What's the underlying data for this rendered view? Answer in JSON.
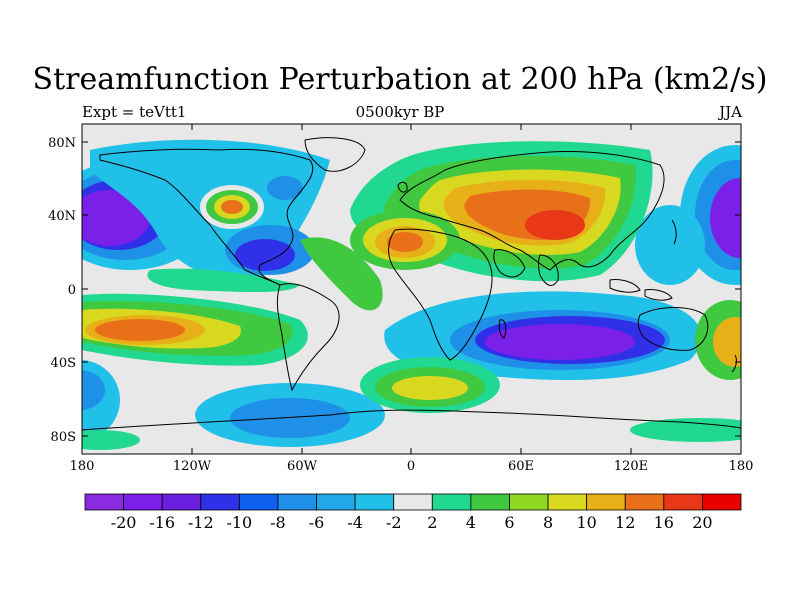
{
  "title": "Streamfunction Perturbation at 200 hPa (km2/s)",
  "subtitle_left": "Expt = teVtt1",
  "subtitle_center": "0500kyr BP",
  "subtitle_right": "JJA",
  "lat_labels": [
    "80N",
    "40N",
    "0",
    "40S",
    "80S"
  ],
  "lon_labels": [
    "180",
    "120W",
    "60W",
    "0",
    "60E",
    "120E",
    "180"
  ],
  "colorbar": {
    "colors": [
      "#8a2be2",
      "#7a20e8",
      "#6a1fe0",
      "#3030e8",
      "#1060f0",
      "#1e90e8",
      "#20a8e8",
      "#20c0e8",
      "#e8e8e8",
      "#20d890",
      "#40c840",
      "#90d820",
      "#d8d820",
      "#e8b018",
      "#e87018",
      "#e83818",
      "#e80000"
    ],
    "labels": [
      "-20",
      "-16",
      "-12",
      "-10",
      "-8",
      "-6",
      "-4",
      "-2",
      "2",
      "4",
      "6",
      "8",
      "10",
      "12",
      "16",
      "20"
    ]
  },
  "colors": {
    "land_line": "#000000",
    "neutral": "#e8e8e8"
  }
}
